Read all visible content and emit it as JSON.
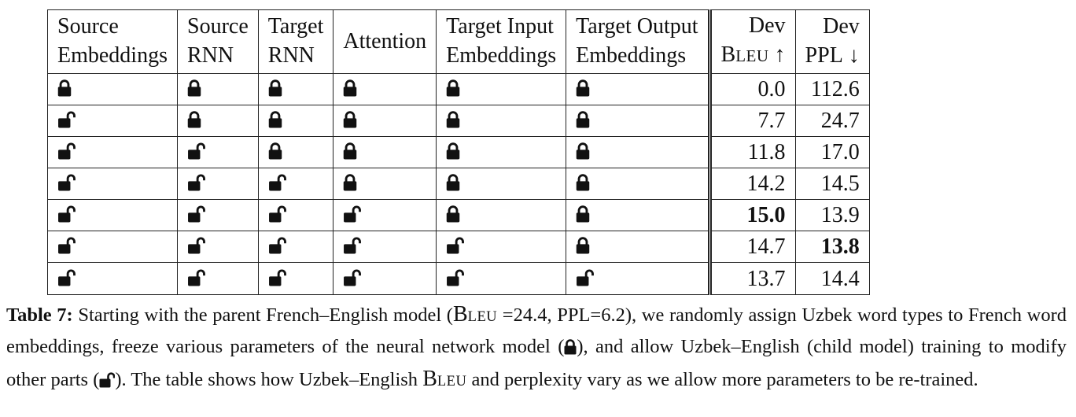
{
  "table": {
    "headers": [
      {
        "line1": "Source",
        "line2": "Embeddings"
      },
      {
        "line1": "Source",
        "line2": "RNN"
      },
      {
        "line1": "Target",
        "line2": "RNN"
      },
      {
        "line1": "Attention",
        "line2": ""
      },
      {
        "line1": "Target Input",
        "line2": "Embeddings"
      },
      {
        "line1": "Target Output",
        "line2": "Embeddings"
      },
      {
        "line1": "Dev",
        "line2_b": "B",
        "line2_rest": "LEU",
        "line2_arrow": "↑"
      },
      {
        "line1": "Dev",
        "line2": "PPL",
        "line2_arrow": "↓"
      }
    ],
    "icon_legend": {
      "locked": "lock-closed-icon",
      "unlocked": "lock-open-icon"
    },
    "rows": [
      {
        "locks": [
          "locked",
          "locked",
          "locked",
          "locked",
          "locked",
          "locked"
        ],
        "bleu": "0.0",
        "ppl": "112.6",
        "bold_bleu": false,
        "bold_ppl": false
      },
      {
        "locks": [
          "unlocked",
          "locked",
          "locked",
          "locked",
          "locked",
          "locked"
        ],
        "bleu": "7.7",
        "ppl": "24.7",
        "bold_bleu": false,
        "bold_ppl": false
      },
      {
        "locks": [
          "unlocked",
          "unlocked",
          "locked",
          "locked",
          "locked",
          "locked"
        ],
        "bleu": "11.8",
        "ppl": "17.0",
        "bold_bleu": false,
        "bold_ppl": false
      },
      {
        "locks": [
          "unlocked",
          "unlocked",
          "unlocked",
          "locked",
          "locked",
          "locked"
        ],
        "bleu": "14.2",
        "ppl": "14.5",
        "bold_bleu": false,
        "bold_ppl": false
      },
      {
        "locks": [
          "unlocked",
          "unlocked",
          "unlocked",
          "unlocked",
          "locked",
          "locked"
        ],
        "bleu": "15.0",
        "ppl": "13.9",
        "bold_bleu": true,
        "bold_ppl": false
      },
      {
        "locks": [
          "unlocked",
          "unlocked",
          "unlocked",
          "unlocked",
          "unlocked",
          "locked"
        ],
        "bleu": "14.7",
        "ppl": "13.8",
        "bold_bleu": false,
        "bold_ppl": true
      },
      {
        "locks": [
          "unlocked",
          "unlocked",
          "unlocked",
          "unlocked",
          "unlocked",
          "unlocked"
        ],
        "bleu": "13.7",
        "ppl": "14.4",
        "bold_bleu": false,
        "bold_ppl": false
      }
    ]
  },
  "caption": {
    "label": "Table 7:",
    "part1": " Starting with the parent French–English model (",
    "bleu_b": "B",
    "bleu_rest": "LEU",
    "part2": " =24.4, PPL=6.2), we randomly assign Uzbek word types to French word embeddings, freeze various parameters of the neural network model (",
    "part3": "), and allow Uzbek–English (child model) training to modify other parts (",
    "part4": ").  The table shows how Uzbek–English ",
    "bleu2_b": "B",
    "bleu2_rest": "LEU",
    "part5": " and perplexity vary as we allow more parameters to be re-trained."
  }
}
